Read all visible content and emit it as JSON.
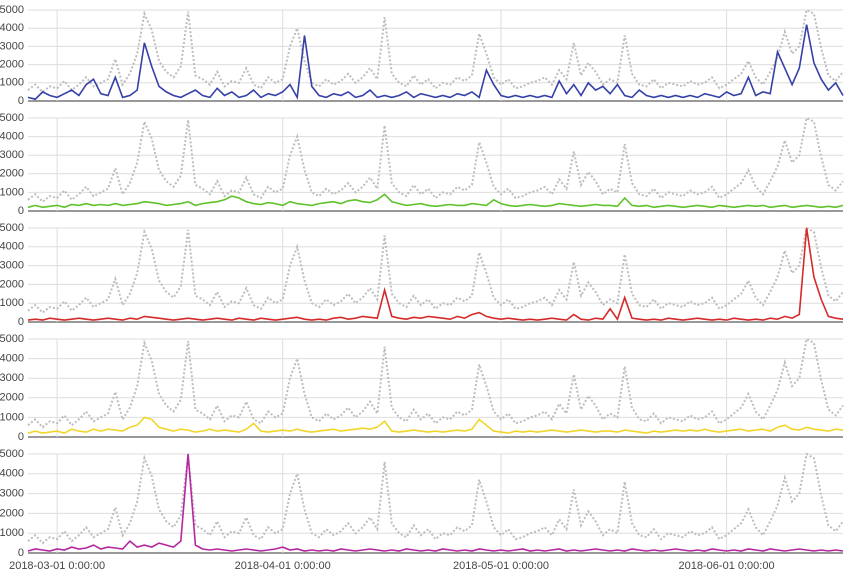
{
  "chart_data": {
    "type": "line",
    "x": [
      "2018-02-25",
      "2018-02-26",
      "2018-02-27",
      "2018-02-28",
      "2018-03-01",
      "2018-03-02",
      "2018-03-03",
      "2018-03-04",
      "2018-03-05",
      "2018-03-06",
      "2018-03-07",
      "2018-03-08",
      "2018-03-09",
      "2018-03-10",
      "2018-03-11",
      "2018-03-12",
      "2018-03-13",
      "2018-03-14",
      "2018-03-15",
      "2018-03-16",
      "2018-03-17",
      "2018-03-18",
      "2018-03-19",
      "2018-03-20",
      "2018-03-21",
      "2018-03-22",
      "2018-03-23",
      "2018-03-24",
      "2018-03-25",
      "2018-03-26",
      "2018-03-27",
      "2018-03-28",
      "2018-03-29",
      "2018-03-30",
      "2018-03-31",
      "2018-04-01",
      "2018-04-02",
      "2018-04-03",
      "2018-04-04",
      "2018-04-05",
      "2018-04-06",
      "2018-04-07",
      "2018-04-08",
      "2018-04-09",
      "2018-04-10",
      "2018-04-11",
      "2018-04-12",
      "2018-04-13",
      "2018-04-14",
      "2018-04-15",
      "2018-04-16",
      "2018-04-17",
      "2018-04-18",
      "2018-04-19",
      "2018-04-20",
      "2018-04-21",
      "2018-04-22",
      "2018-04-23",
      "2018-04-24",
      "2018-04-25",
      "2018-04-26",
      "2018-04-27",
      "2018-04-28",
      "2018-04-29",
      "2018-04-30",
      "2018-05-01",
      "2018-05-02",
      "2018-05-03",
      "2018-05-04",
      "2018-05-05",
      "2018-05-06",
      "2018-05-07",
      "2018-05-08",
      "2018-05-09",
      "2018-05-10",
      "2018-05-11",
      "2018-05-12",
      "2018-05-13",
      "2018-05-14",
      "2018-05-15",
      "2018-05-16",
      "2018-05-17",
      "2018-05-18",
      "2018-05-19",
      "2018-05-20",
      "2018-05-21",
      "2018-05-22",
      "2018-05-23",
      "2018-05-24",
      "2018-05-25",
      "2018-05-26",
      "2018-05-27",
      "2018-05-28",
      "2018-05-29",
      "2018-05-30",
      "2018-05-31",
      "2018-06-01",
      "2018-06-02",
      "2018-06-03",
      "2018-06-04",
      "2018-06-05",
      "2018-06-06",
      "2018-06-07",
      "2018-06-08",
      "2018-06-09",
      "2018-06-10",
      "2018-06-11",
      "2018-06-12",
      "2018-06-13",
      "2018-06-14",
      "2018-06-15",
      "2018-06-16",
      "2018-06-17"
    ],
    "xlim": [
      "2018-02-25",
      "2018-06-17"
    ],
    "xticks": [
      {
        "value": "2018-03-01",
        "label": "2018-03-01 0:00:00"
      },
      {
        "value": "2018-04-01",
        "label": "2018-04-01 0:00:00"
      },
      {
        "value": "2018-05-01",
        "label": "2018-05-01 0:00:00"
      },
      {
        "value": "2018-06-01",
        "label": "2018-06-01 0:00:00"
      }
    ],
    "ylim": [
      0,
      5000
    ],
    "yticks": [
      0,
      1000,
      2000,
      3000,
      4000,
      5000
    ],
    "grid": true,
    "series": [
      {
        "color": "#3540a8",
        "values": [
          200,
          100,
          500,
          300,
          200,
          400,
          600,
          300,
          900,
          1200,
          400,
          300,
          1300,
          200,
          300,
          600,
          3200,
          1900,
          800,
          500,
          300,
          200,
          400,
          600,
          300,
          200,
          700,
          300,
          500,
          200,
          300,
          600,
          200,
          400,
          300,
          500,
          900,
          200,
          3600,
          800,
          300,
          200,
          400,
          300,
          500,
          200,
          300,
          600,
          200,
          300,
          200,
          300,
          500,
          200,
          400,
          300,
          200,
          300,
          200,
          400,
          300,
          500,
          200,
          1700,
          900,
          300,
          200,
          300,
          200,
          300,
          200,
          300,
          200,
          1100,
          400,
          900,
          300,
          1000,
          600,
          800,
          400,
          900,
          300,
          200,
          600,
          300,
          200,
          300,
          200,
          300,
          200,
          300,
          200,
          400,
          300,
          200,
          500,
          300,
          400,
          1300,
          300,
          500,
          400,
          2700,
          1800,
          900,
          1800,
          4200,
          2100,
          1200,
          600,
          1000,
          300
        ]
      },
      {
        "color": "#5ec22a",
        "values": [
          200,
          300,
          200,
          250,
          300,
          200,
          350,
          300,
          400,
          300,
          350,
          300,
          400,
          300,
          350,
          400,
          500,
          450,
          400,
          300,
          350,
          400,
          500,
          300,
          400,
          450,
          500,
          600,
          800,
          700,
          500,
          400,
          350,
          450,
          400,
          300,
          500,
          400,
          350,
          300,
          400,
          450,
          500,
          400,
          550,
          600,
          500,
          450,
          600,
          900,
          500,
          400,
          300,
          350,
          400,
          300,
          250,
          300,
          350,
          300,
          300,
          400,
          350,
          300,
          600,
          400,
          300,
          250,
          300,
          350,
          300,
          250,
          300,
          400,
          350,
          300,
          250,
          300,
          350,
          300,
          300,
          250,
          700,
          300,
          250,
          300,
          200,
          250,
          300,
          250,
          200,
          250,
          300,
          250,
          200,
          300,
          250,
          200,
          250,
          300,
          250,
          300,
          200,
          250,
          300,
          200,
          250,
          300,
          250,
          200,
          250,
          200,
          300
        ]
      },
      {
        "color": "#d62a2a",
        "values": [
          100,
          150,
          100,
          200,
          150,
          100,
          150,
          200,
          150,
          100,
          150,
          200,
          150,
          100,
          200,
          150,
          300,
          250,
          200,
          150,
          100,
          150,
          200,
          150,
          100,
          150,
          200,
          150,
          100,
          200,
          150,
          100,
          200,
          150,
          100,
          150,
          200,
          250,
          150,
          100,
          150,
          100,
          200,
          250,
          150,
          200,
          300,
          250,
          200,
          1700,
          300,
          200,
          150,
          250,
          200,
          300,
          250,
          200,
          150,
          300,
          200,
          400,
          500,
          300,
          200,
          150,
          200,
          150,
          100,
          150,
          100,
          150,
          200,
          150,
          100,
          400,
          150,
          100,
          200,
          150,
          700,
          150,
          1300,
          200,
          150,
          100,
          150,
          100,
          200,
          150,
          100,
          150,
          200,
          150,
          100,
          150,
          100,
          200,
          150,
          100,
          150,
          100,
          200,
          150,
          300,
          200,
          400,
          5000,
          2400,
          1200,
          300,
          200,
          150
        ]
      },
      {
        "color": "#f2d52a",
        "values": [
          200,
          300,
          200,
          250,
          300,
          200,
          400,
          300,
          250,
          400,
          300,
          400,
          350,
          300,
          500,
          600,
          1000,
          900,
          500,
          400,
          300,
          400,
          350,
          250,
          300,
          400,
          300,
          350,
          300,
          250,
          400,
          700,
          300,
          250,
          300,
          350,
          300,
          400,
          300,
          250,
          300,
          350,
          400,
          300,
          350,
          400,
          450,
          400,
          500,
          800,
          300,
          250,
          300,
          350,
          300,
          250,
          300,
          250,
          300,
          350,
          300,
          400,
          900,
          600,
          300,
          250,
          200,
          300,
          250,
          300,
          250,
          300,
          350,
          300,
          250,
          300,
          350,
          300,
          250,
          300,
          300,
          250,
          350,
          300,
          250,
          200,
          300,
          250,
          300,
          350,
          300,
          350,
          300,
          400,
          300,
          250,
          300,
          350,
          400,
          300,
          350,
          400,
          300,
          500,
          600,
          400,
          350,
          500,
          400,
          350,
          300,
          400,
          350
        ]
      },
      {
        "color": "#b5279f",
        "values": [
          100,
          200,
          150,
          100,
          200,
          150,
          300,
          200,
          250,
          400,
          200,
          300,
          250,
          200,
          600,
          300,
          400,
          300,
          500,
          400,
          300,
          600,
          5000,
          400,
          200,
          150,
          200,
          150,
          100,
          150,
          200,
          150,
          100,
          150,
          200,
          300,
          150,
          200,
          100,
          150,
          100,
          150,
          100,
          200,
          150,
          100,
          150,
          200,
          150,
          100,
          150,
          100,
          200,
          150,
          100,
          150,
          100,
          200,
          150,
          100,
          150,
          100,
          200,
          150,
          100,
          150,
          100,
          150,
          200,
          100,
          150,
          100,
          150,
          200,
          100,
          150,
          100,
          150,
          200,
          150,
          100,
          150,
          100,
          200,
          150,
          100,
          150,
          100,
          150,
          200,
          150,
          100,
          150,
          100,
          200,
          150,
          100,
          150,
          100,
          200,
          150,
          100,
          200,
          150,
          100,
          150,
          200,
          150,
          100,
          150,
          100,
          150,
          100
        ]
      },
      {
        "color": "#bdbdbd",
        "style": "dotted",
        "values": [
          600,
          900,
          500,
          800,
          700,
          1100,
          600,
          900,
          1300,
          800,
          1000,
          1200,
          2300,
          900,
          1500,
          2600,
          4800,
          3900,
          2200,
          1600,
          1300,
          1900,
          4900,
          1400,
          1200,
          900,
          1600,
          800,
          1100,
          1000,
          1800,
          900,
          700,
          1300,
          1000,
          1200,
          3000,
          4000,
          2200,
          1000,
          800,
          1200,
          900,
          1100,
          1500,
          1000,
          1300,
          1800,
          1200,
          4600,
          1500,
          1000,
          800,
          1400,
          900,
          1200,
          700,
          1000,
          900,
          1300,
          1100,
          1400,
          3700,
          2600,
          1300,
          900,
          1200,
          700,
          800,
          1000,
          1100,
          1300,
          900,
          1700,
          1200,
          3200,
          1400,
          2100,
          1600,
          900,
          1200,
          1000,
          3600,
          1500,
          900,
          800,
          1200,
          700,
          1000,
          900,
          800,
          1100,
          900,
          1000,
          1300,
          700,
          900,
          1200,
          1500,
          2200,
          1300,
          900,
          1600,
          2400,
          3800,
          2600,
          3000,
          5000,
          4800,
          2900,
          1400,
          1100,
          1600
        ]
      }
    ]
  }
}
